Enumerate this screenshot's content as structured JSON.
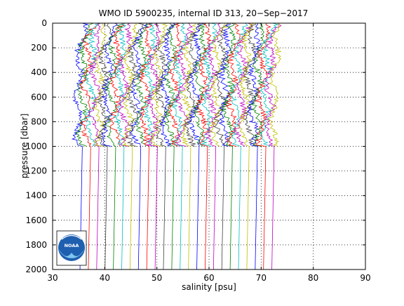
{
  "chart_data": {
    "type": "line",
    "title": "WMO ID 5900235, internal ID 313, 20−Sep−2017",
    "xlabel": "salinity [psu]",
    "ylabel": "pressure [dbar]",
    "xlim": [
      30,
      90
    ],
    "ylim": [
      0,
      2000
    ],
    "y_reversed": true,
    "grid": true,
    "grid_style": "dotted",
    "xticks": [
      "30",
      "40",
      "50",
      "60",
      "70",
      "80",
      "90"
    ],
    "yticks": [
      "0",
      "200",
      "400",
      "600",
      "800",
      "1000",
      "1200",
      "1400",
      "1600",
      "1800",
      "2000"
    ],
    "xtick_values": [
      30,
      40,
      50,
      60,
      70,
      80,
      90
    ],
    "ytick_values": [
      0,
      200,
      400,
      600,
      800,
      1000,
      1200,
      1400,
      1600,
      1800,
      2000
    ],
    "series_count": 48,
    "first_profile_base_salinity": 34.8,
    "profile_offset_step": 0.8,
    "series_colors": [
      "#0000ff",
      "#008000",
      "#ff0000",
      "#00bfbf",
      "#bf00bf",
      "#bfbf00",
      "#404040"
    ],
    "deep_profile_min_pressure": 1000,
    "logo": {
      "name": "noaa-logo",
      "text": "NOAA"
    }
  }
}
